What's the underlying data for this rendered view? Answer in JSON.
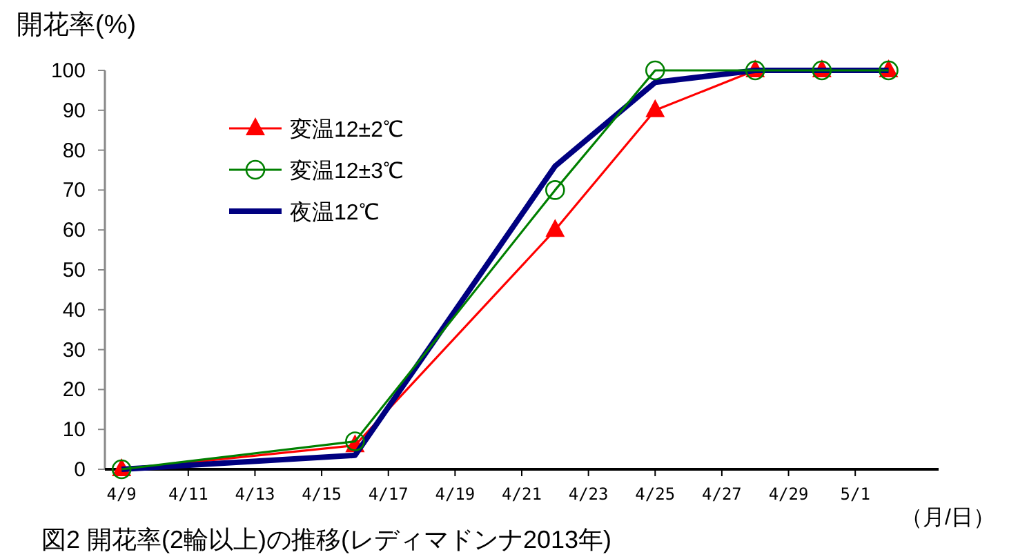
{
  "chart_data": {
    "type": "line",
    "ylabel": "開花率(%)",
    "xlabel": "（月/日）",
    "annotations": [
      "図2 開花率(2輪以上)の推移(レディマドンナ2013年)"
    ],
    "x": [
      "2013-04-09",
      "2013-04-16",
      "2013-04-22",
      "2013-04-25",
      "2013-04-28",
      "2013-04-30",
      "2013-05-02"
    ],
    "series": [
      {
        "name": "変温12±2℃",
        "color": "#ff0000",
        "marker": "triangle",
        "values": [
          0,
          6,
          60,
          90,
          100,
          100,
          100
        ]
      },
      {
        "name": "変温12±3℃",
        "color": "#008000",
        "marker": "circle",
        "values": [
          0,
          7,
          70,
          100,
          100,
          100,
          100
        ]
      },
      {
        "name": "夜温12℃",
        "color": "#000080",
        "marker": "none",
        "values": [
          0,
          3.5,
          76,
          97,
          100,
          100,
          100
        ]
      }
    ],
    "xlim": [
      "2013-04-08T12:00",
      "2013-05-03T12:00"
    ],
    "xticks": [
      {
        "value": "2013-04-09",
        "label": "4/9"
      },
      {
        "value": "2013-04-11",
        "label": "4/11"
      },
      {
        "value": "2013-04-13",
        "label": "4/13"
      },
      {
        "value": "2013-04-15",
        "label": "4/15"
      },
      {
        "value": "2013-04-17",
        "label": "4/17"
      },
      {
        "value": "2013-04-19",
        "label": "4/19"
      },
      {
        "value": "2013-04-21",
        "label": "4/21"
      },
      {
        "value": "2013-04-23",
        "label": "4/23"
      },
      {
        "value": "2013-04-25",
        "label": "4/25"
      },
      {
        "value": "2013-04-27",
        "label": "4/27"
      },
      {
        "value": "2013-04-29",
        "label": "4/29"
      },
      {
        "value": "2013-05-01",
        "label": "5/1"
      }
    ],
    "ylim": [
      0,
      100
    ],
    "yticks": [
      0,
      10,
      20,
      30,
      40,
      50,
      60,
      70,
      80,
      90,
      100
    ],
    "grid": false,
    "legend": "top left"
  }
}
